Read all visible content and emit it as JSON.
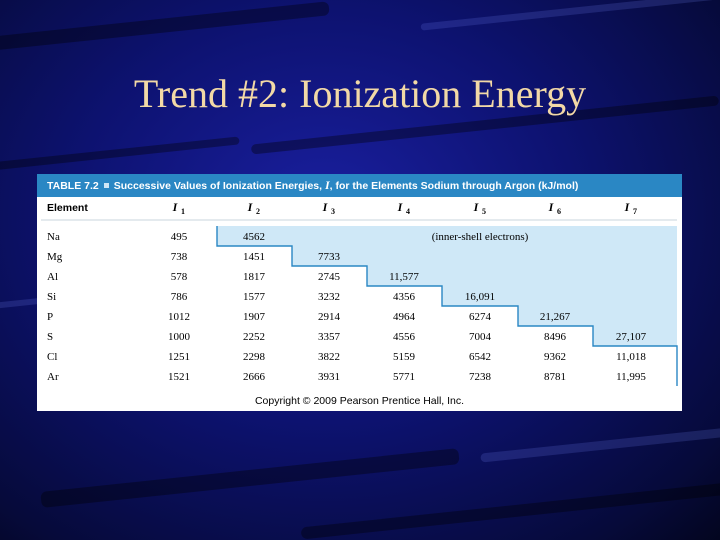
{
  "slide": {
    "title": "Trend #2: Ionization Energy"
  },
  "table": {
    "caption_label": "TABLE 7.2",
    "caption_pre": "Successive Values of Ionization Energies, ",
    "caption_var": "I",
    "caption_post": ", for the Elements Sodium through Argon (kJ/mol)",
    "element_header": "Element",
    "columns": [
      "1",
      "2",
      "3",
      "4",
      "5",
      "6",
      "7"
    ],
    "inner_shell_label": "(inner-shell electrons)",
    "rows": [
      {
        "element": "Na",
        "values": [
          "495",
          "4562",
          "",
          "",
          "",
          "",
          ""
        ],
        "inner_from": 1
      },
      {
        "element": "Mg",
        "values": [
          "738",
          "1451",
          "7733",
          "",
          "",
          "",
          ""
        ],
        "inner_from": 2
      },
      {
        "element": "Al",
        "values": [
          "578",
          "1817",
          "2745",
          "11,577",
          "",
          "",
          ""
        ],
        "inner_from": 3
      },
      {
        "element": "Si",
        "values": [
          "786",
          "1577",
          "3232",
          "4356",
          "16,091",
          "",
          ""
        ],
        "inner_from": 4
      },
      {
        "element": "P",
        "values": [
          "1012",
          "1907",
          "2914",
          "4964",
          "6274",
          "21,267",
          ""
        ],
        "inner_from": 5
      },
      {
        "element": "S",
        "values": [
          "1000",
          "2252",
          "3357",
          "4556",
          "7004",
          "8496",
          "27,107"
        ],
        "inner_from": 6
      },
      {
        "element": "Cl",
        "values": [
          "1251",
          "2298",
          "3822",
          "5159",
          "6542",
          "9362",
          "11,018"
        ],
        "inner_from": 7
      },
      {
        "element": "Ar",
        "values": [
          "1521",
          "2666",
          "3931",
          "5771",
          "7238",
          "8781",
          "11,995"
        ],
        "inner_from": 7
      }
    ]
  },
  "copyright": "Copyright © 2009 Pearson Prentice Hall, Inc.",
  "colors": {
    "shade": "#cfe8f7",
    "caption_bg": "#2a87c4",
    "step_line": "#2a87c4",
    "title": "#f2d9a6"
  }
}
